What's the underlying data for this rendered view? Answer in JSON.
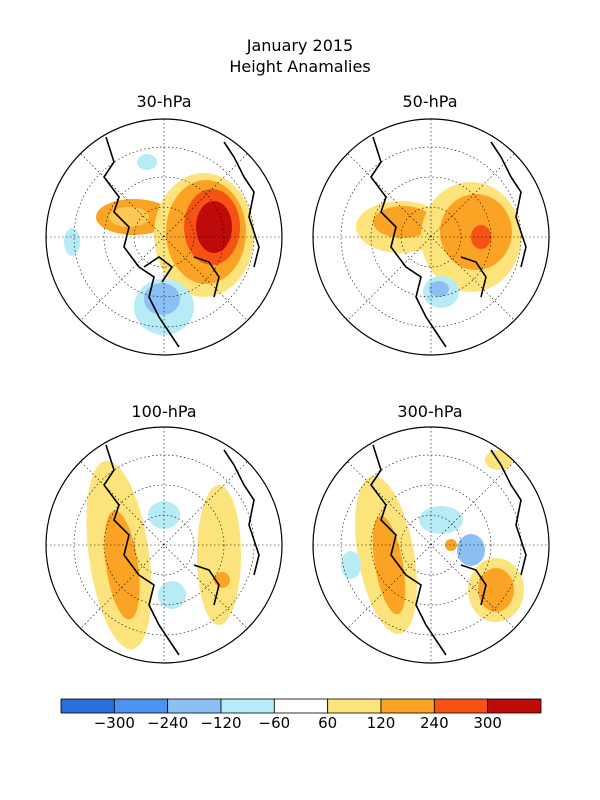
{
  "header": {
    "title_line1": "January 2015",
    "title_line2": "Height Anamalies"
  },
  "panels": [
    {
      "label": "30-hPa"
    },
    {
      "label": "50-hPa"
    },
    {
      "label": "100-hPa"
    },
    {
      "label": "300-hPa"
    }
  ],
  "colorbar": {
    "colors": [
      "#2a6fdb",
      "#4d92ee",
      "#8cc0f5",
      "#b7ecf7",
      "#ffffff",
      "#fde37c",
      "#fba324",
      "#f55214",
      "#bf0a0a"
    ],
    "labels": [
      "−300",
      "−240",
      "−120",
      "−60",
      "60",
      "120",
      "240",
      "300"
    ]
  }
}
